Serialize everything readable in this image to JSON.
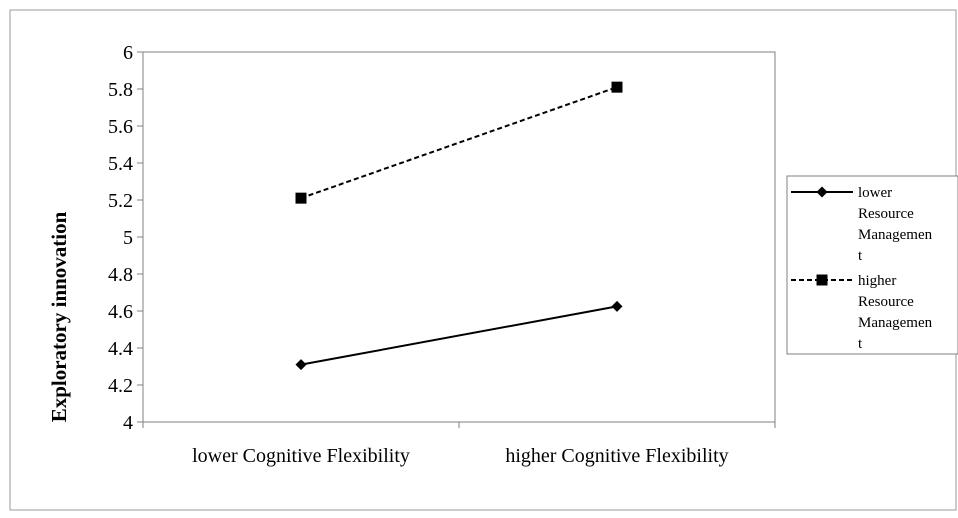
{
  "chart_data": {
    "type": "line",
    "categories": [
      "lower Cognitive Flexibility",
      "higher Cognitive Flexibility"
    ],
    "series": [
      {
        "name": "lower Resource Managemen t",
        "legend_lines": [
          "lower",
          "Resource",
          "Managemen",
          "t"
        ],
        "values": [
          4.31,
          4.625
        ],
        "line_style": "solid",
        "marker": "diamond"
      },
      {
        "name": "higher Resource Managemen t",
        "legend_lines": [
          "higher",
          "Resource",
          "Managemen",
          "t"
        ],
        "values": [
          5.21,
          5.81
        ],
        "line_style": "dashed",
        "marker": "square"
      }
    ],
    "ylabel": "Exploratory innovation",
    "xlabel": "",
    "ylim": [
      4,
      6
    ],
    "yticks": [
      "4",
      "4.2",
      "4.4",
      "4.6",
      "4.8",
      "5",
      "5.2",
      "5.4",
      "5.6",
      "5.8",
      "6"
    ],
    "grid": false,
    "legend_position": "right",
    "colors": {
      "line": "#000000",
      "frame": "#888888",
      "background": "#ffffff"
    }
  }
}
